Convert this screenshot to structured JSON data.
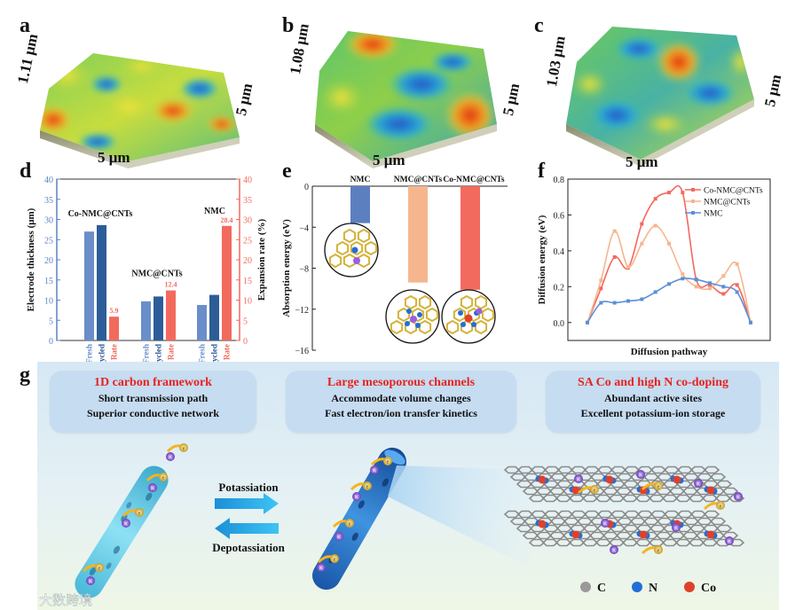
{
  "panels": {
    "a": {
      "letter": "a",
      "height": "1.11 μm",
      "width1": "5 μm",
      "width2": "5 μm"
    },
    "b": {
      "letter": "b",
      "height": "1.08 μm",
      "width1": "5 μm",
      "width2": "5 μm"
    },
    "c": {
      "letter": "c",
      "height": "1.03 μm",
      "width1": "5 μm",
      "width2": "5 μm"
    }
  },
  "panel_d": {
    "letter": "d"
  },
  "panel_e": {
    "letter": "e"
  },
  "panel_f": {
    "letter": "f"
  },
  "panel_g": {
    "letter": "g",
    "box1": {
      "title": "1D carbon framework",
      "line1": "Short transmission path",
      "line2": "Superior conductive network"
    },
    "box2": {
      "title": "Large mesoporous channels",
      "line1": "Accommodate volume changes",
      "line2": "Fast electron/ion transfer kinetics"
    },
    "box3": {
      "title": "SA Co and high N co-doping",
      "line1": "Abundant active sites",
      "line2": "Excellent potassium-ion storage"
    },
    "arrow_forward": "Potassiation",
    "arrow_back": "Depotassiation",
    "legend": [
      {
        "label": "C",
        "color": "#9a9a9a"
      },
      {
        "label": "N",
        "color": "#1f6fd6"
      },
      {
        "label": "Co",
        "color": "#e0402a"
      }
    ],
    "ion_k": "K",
    "ion_e": "e",
    "watermark": "大数跨境"
  },
  "chart_data": [
    {
      "type": "bar",
      "panel": "d",
      "ylabel": "Electrode thickness (μm)",
      "y2label": "Expansion rate (%)",
      "ylim": [
        0,
        40
      ],
      "y2lim": [
        0,
        40
      ],
      "yticks": [
        0,
        5,
        10,
        15,
        20,
        25,
        30,
        35,
        40
      ],
      "groups": [
        {
          "name": "Co-NMC@CNTs",
          "fresh": 27,
          "cycled": 28.6,
          "rate": 5.9,
          "rate_label": "5.9"
        },
        {
          "name": "NMC@CNTs",
          "fresh": 9.7,
          "cycled": 10.9,
          "rate": 12.4,
          "rate_label": "12.4"
        },
        {
          "name": "NMC",
          "fresh": 8.8,
          "cycled": 11.3,
          "rate": 28.4,
          "rate_label": "28.4"
        }
      ],
      "bar_labels": [
        "Fresh",
        "Cycled",
        "Rate"
      ],
      "colors": {
        "fresh": "#6a8ec9",
        "cycled": "#2c5d98",
        "rate": "#f26a5e",
        "left_axis": "#5b82c4",
        "right_axis": "#f26a5e"
      }
    },
    {
      "type": "bar",
      "panel": "e",
      "ylabel": "Absorption energy (eV)",
      "ylim": [
        -16,
        0
      ],
      "yticks": [
        0,
        -4,
        -8,
        -12,
        -16
      ],
      "categories": [
        "NMC",
        "NMC@CNTs",
        "Co-NMC@CNTs"
      ],
      "values": [
        -3.6,
        -9.4,
        -10.1
      ],
      "colors": [
        "#5c7fc0",
        "#f6b68d",
        "#f26a5e"
      ]
    },
    {
      "type": "line",
      "panel": "f",
      "xlabel": "Diffusion pathway",
      "ylabel": "Diffusion energy (eV)",
      "ylim": [
        -0.1,
        0.8
      ],
      "yticks": [
        0.0,
        0.2,
        0.4,
        0.6,
        0.8
      ],
      "series": [
        {
          "name": "Co-NMC@CNTs",
          "color": "#f26a5e",
          "values": [
            0,
            0.19,
            0.365,
            0.305,
            0.55,
            0.69,
            0.725,
            0.725,
            0.24,
            0.21,
            0.16,
            0.21,
            0
          ]
        },
        {
          "name": "NMC@CNTs",
          "color": "#f6b68d",
          "values": [
            0,
            0.235,
            0.51,
            0.31,
            0.44,
            0.54,
            0.44,
            0.27,
            0.2,
            0.19,
            0.26,
            0.325,
            0
          ]
        },
        {
          "name": "NMC",
          "color": "#5c8fd6",
          "values": [
            0,
            0.11,
            0.11,
            0.12,
            0.13,
            0.17,
            0.215,
            0.245,
            0.24,
            0.22,
            0.2,
            0.17,
            0
          ]
        }
      ]
    }
  ]
}
